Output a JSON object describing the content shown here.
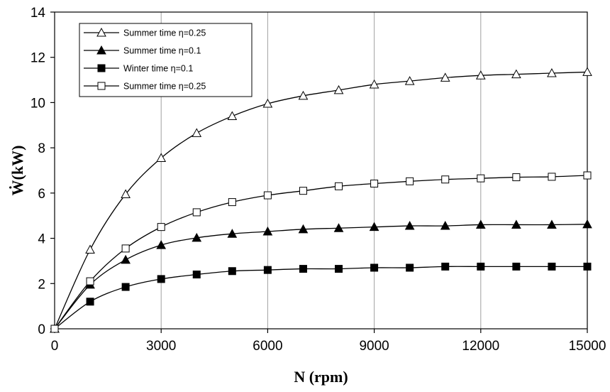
{
  "chart_data": {
    "type": "line",
    "title": "",
    "xlabel": "N (rpm)",
    "ylabel": "Ẇ(kW)",
    "xlim": [
      0,
      15000
    ],
    "ylim": [
      0,
      14
    ],
    "xticks": [
      0,
      3000,
      6000,
      9000,
      12000,
      15000
    ],
    "yticks": [
      0,
      2,
      4,
      6,
      8,
      10,
      12,
      14
    ],
    "xtick_labels": [
      "0",
      "3000",
      "6000",
      "9000",
      "12000",
      "15000"
    ],
    "ytick_labels": [
      "0",
      "2",
      "4",
      "6",
      "8",
      "10",
      "12",
      "14"
    ],
    "grid": "vertical",
    "legend_position": "top-left",
    "x": [
      0,
      1000,
      2000,
      3000,
      4000,
      5000,
      6000,
      7000,
      8000,
      9000,
      10000,
      11000,
      12000,
      13000,
      14000,
      15000
    ],
    "series": [
      {
        "name": "Summer time η=0.25",
        "marker": "triangle-open",
        "values": [
          0,
          3.5,
          5.95,
          7.55,
          8.65,
          9.4,
          9.95,
          10.3,
          10.55,
          10.8,
          10.95,
          11.1,
          11.2,
          11.25,
          11.3,
          11.35
        ]
      },
      {
        "name": "Summer time η=0.1",
        "marker": "triangle-filled",
        "values": [
          0,
          1.95,
          3.05,
          3.7,
          4.02,
          4.2,
          4.3,
          4.4,
          4.45,
          4.5,
          4.55,
          4.55,
          4.6,
          4.6,
          4.6,
          4.62
        ]
      },
      {
        "name": "Winter time η=0.1",
        "marker": "square-filled",
        "values": [
          0,
          1.2,
          1.85,
          2.2,
          2.4,
          2.55,
          2.6,
          2.65,
          2.65,
          2.7,
          2.7,
          2.75,
          2.75,
          2.75,
          2.75,
          2.75
        ]
      },
      {
        "name": "Summer time η=0.25",
        "marker": "square-open",
        "values": [
          0,
          2.1,
          3.55,
          4.5,
          5.15,
          5.6,
          5.9,
          6.1,
          6.3,
          6.42,
          6.52,
          6.6,
          6.65,
          6.7,
          6.72,
          6.78
        ]
      }
    ]
  }
}
